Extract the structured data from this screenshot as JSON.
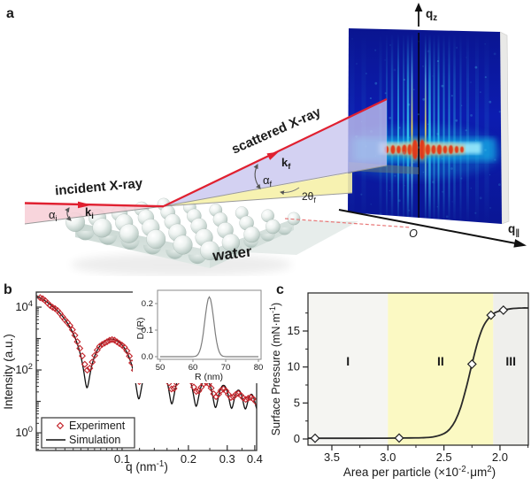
{
  "figure": {
    "panel_a": {
      "label": "a",
      "incident_label": "incident X-ray",
      "scattered_label": "scattered X-ray",
      "water_label": "water",
      "origin_label": "O",
      "alpha_i": [
        {
          "t": "α"
        },
        {
          "t": "i",
          "sub": true
        }
      ],
      "k_i": [
        {
          "t": "k"
        },
        {
          "t": "i",
          "sub": true
        }
      ],
      "alpha_f": [
        {
          "t": "α"
        },
        {
          "t": "f",
          "sub": true
        }
      ],
      "k_f": [
        {
          "t": "k"
        },
        {
          "t": "f",
          "sub": true
        }
      ],
      "two_theta_f": [
        {
          "t": "2θ"
        },
        {
          "t": "f",
          "sub": true
        }
      ],
      "qz": [
        {
          "t": "q"
        },
        {
          "t": "z",
          "sub": true
        }
      ],
      "qpar": [
        {
          "t": "q"
        },
        {
          "t": "∥",
          "sub": true
        }
      ]
    },
    "panel_b": {
      "label": "b"
    },
    "panel_c": {
      "label": "c"
    }
  },
  "chart_data": [
    {
      "id": "panel-b",
      "type": "line+scatter",
      "xscale": "log",
      "yscale": "log",
      "xlabel_rich": [
        {
          "t": "q (nm"
        },
        {
          "t": "-1",
          "sup": true
        },
        {
          "t": ")"
        }
      ],
      "ylabel": "Intensity (a.u.)",
      "xlim": [
        0.0408,
        0.408
      ],
      "ylim_log10": [
        -0.563,
        4.48
      ],
      "xticks": [
        {
          "v": 0.1,
          "label": "0.1"
        },
        {
          "v": 0.2,
          "label": "0.2"
        },
        {
          "v": 0.3,
          "label": "0.3"
        },
        {
          "v": 0.4,
          "label": "0.4"
        }
      ],
      "xminors": [
        0.05,
        0.055,
        0.06,
        0.065,
        0.07,
        0.075,
        0.08,
        0.085,
        0.09,
        0.095,
        0.12,
        0.14,
        0.16,
        0.18,
        0.25,
        0.35
      ],
      "ytick_decades": [
        0,
        2,
        4
      ],
      "yminor_decades": [
        1,
        3
      ],
      "series": [
        {
          "name": "Experiment",
          "style": "scatter",
          "marker": "open-diamond",
          "color": "#c3242b",
          "model": {
            "type": "polydisperse-sphere-form-factor",
            "R_nm": 65,
            "sigma_nm": 2.8,
            "scale": 110000,
            "envelope_q0": 0.17,
            "envelope_exp": 2.5,
            "points": 88
          }
        },
        {
          "name": "Simulation",
          "style": "line",
          "color": "#111111",
          "model": {
            "type": "polydisperse-sphere-form-factor",
            "R_nm": 65,
            "sigma_nm": 1.5,
            "scale": 110000,
            "envelope_q0": 0.17,
            "envelope_exp": 2.5,
            "points": 380
          }
        }
      ],
      "form_factor_minima_q": [
        0.069,
        0.119,
        0.168,
        0.216,
        0.265,
        0.313,
        0.362,
        0.41
      ],
      "legend": {
        "items": [
          {
            "label": "Experiment"
          },
          {
            "label": "Simulation"
          }
        ]
      }
    },
    {
      "id": "panel-b-inset",
      "type": "line",
      "xlabel": "R (nm)",
      "ylabel": "D (R)",
      "xlim": [
        50,
        80
      ],
      "ylim": [
        0,
        0.25
      ],
      "xticks": [
        {
          "v": 50,
          "label": "50"
        },
        {
          "v": 60,
          "label": "60"
        },
        {
          "v": 70,
          "label": "70"
        },
        {
          "v": 80,
          "label": "80"
        }
      ],
      "yticks": [
        {
          "v": 0,
          "label": "0.0"
        },
        {
          "v": 0.1,
          "label": "0.1"
        },
        {
          "v": 0.2,
          "label": "0.2"
        }
      ],
      "curve": {
        "shape": "gaussian",
        "center_nm": 65,
        "sigma_nm": 1.35,
        "peak": 0.225
      },
      "color": "#7d7d7d"
    },
    {
      "id": "panel-c",
      "type": "line+scatter",
      "x_reversed": true,
      "xlabel_rich": [
        {
          "t": "Area  per particle (×10"
        },
        {
          "t": "-2",
          "sup": true
        },
        {
          "t": "·μm"
        },
        {
          "t": "2",
          "sup": true
        },
        {
          "t": ")"
        }
      ],
      "ylabel_rich": [
        {
          "t": "Surface Pressure (mN·m"
        },
        {
          "t": "-1",
          "sup": true
        },
        {
          "t": ")"
        }
      ],
      "xlim": [
        3.713,
        1.747
      ],
      "ylim": [
        -0.86,
        20.3
      ],
      "xticks": [
        {
          "v": 3.5,
          "label": "3.5"
        },
        {
          "v": 3.0,
          "label": "3.0"
        },
        {
          "v": 2.5,
          "label": "2.5"
        },
        {
          "v": 2.0,
          "label": "2.0"
        }
      ],
      "xminors": [
        3.25,
        2.75,
        2.25,
        1.75
      ],
      "yticks": [
        {
          "v": 0,
          "label": "0"
        },
        {
          "v": 5,
          "label": "5"
        },
        {
          "v": 10,
          "label": "10"
        },
        {
          "v": 15,
          "label": "15"
        }
      ],
      "yminors": [
        2.5,
        7.5,
        12.5,
        17.5
      ],
      "regions": [
        {
          "label": "I",
          "x_from": 3.713,
          "x_to": 3.0,
          "color": "#f5f5f2"
        },
        {
          "label": "II",
          "x_from": 3.0,
          "x_to": 2.06,
          "color": "#fbf9c3"
        },
        {
          "label": "III",
          "x_from": 2.06,
          "x_to": 1.747,
          "color": "#efefec"
        }
      ],
      "curve_points": [
        [
          3.71,
          0.1
        ],
        [
          3.5,
          0.1
        ],
        [
          3.3,
          0.1
        ],
        [
          3.1,
          0.11
        ],
        [
          2.95,
          0.12
        ],
        [
          2.8,
          0.15
        ],
        [
          2.7,
          0.17
        ],
        [
          2.6,
          0.27
        ],
        [
          2.5,
          0.75
        ],
        [
          2.45,
          1.35
        ],
        [
          2.4,
          2.5
        ],
        [
          2.35,
          4.4
        ],
        [
          2.3,
          7.2
        ],
        [
          2.25,
          10.4
        ],
        [
          2.2,
          13.4
        ],
        [
          2.15,
          15.6
        ],
        [
          2.1,
          16.8
        ],
        [
          2.05,
          17.5
        ],
        [
          2.0,
          17.8
        ],
        [
          1.9,
          18.1
        ],
        [
          1.8,
          18.2
        ],
        [
          1.75,
          18.2
        ]
      ],
      "marker_points": [
        [
          3.65,
          0.1
        ],
        [
          2.9,
          0.13
        ],
        [
          2.25,
          10.4
        ],
        [
          2.08,
          17.2
        ],
        [
          1.97,
          17.9
        ]
      ],
      "curve_color": "#2a2a2a"
    }
  ],
  "colors": {
    "beam_red": "#e02030",
    "dashed_red": "#e87878",
    "wedge_pink": "#f7ccd4",
    "wedge_blue": "#c6c4ee",
    "wedge_yellow": "#f6f1a8",
    "surface_gray": "#9a9a9a",
    "detector_base": "#0a18a2",
    "detector_cyan": "#35d9f6",
    "detector_hot_yellow": "#ffe24a",
    "detector_hot_red": "#e03413",
    "experiment_red": "#c3242b",
    "region_yellow": "#fbf9c3",
    "region_gray": "#f1f1ee"
  }
}
